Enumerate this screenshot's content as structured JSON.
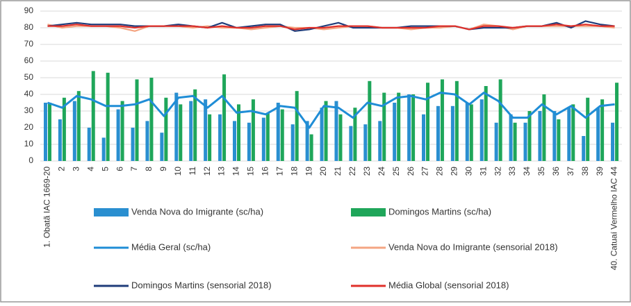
{
  "chart_data": {
    "type": "bar",
    "categories": [
      "1. Obatã IAC 1669-20",
      "2",
      "3",
      "4",
      "5",
      "6",
      "7",
      "8",
      "9",
      "10",
      "11",
      "12",
      "13",
      "14",
      "15",
      "16",
      "17",
      "18",
      "19",
      "20",
      "21",
      "22",
      "23",
      "24",
      "25",
      "26",
      "27",
      "28",
      "29",
      "30",
      "31",
      "32",
      "33",
      "34",
      "35",
      "36",
      "37",
      "38",
      "39",
      "40. Catuaí Vermelho IAC 44"
    ],
    "series": [
      {
        "name": "Venda Nova do Imigrante (sc/ha)",
        "type": "bar",
        "color": "#2a8fd0",
        "values": [
          35,
          25,
          36,
          20,
          14,
          31,
          20,
          24,
          17,
          41,
          36,
          37,
          28,
          24,
          23,
          26,
          35,
          22,
          24,
          32,
          36,
          21,
          22,
          24,
          35,
          40,
          28,
          33,
          33,
          35,
          37,
          23,
          28,
          23,
          30,
          30,
          32,
          15,
          32,
          23
        ]
      },
      {
        "name": "Domingos Martins (sc/ha)",
        "type": "bar",
        "color": "#1fa65a",
        "values": [
          35,
          38,
          42,
          54,
          53,
          36,
          49,
          50,
          38,
          34,
          43,
          28,
          52,
          34,
          37,
          29,
          31,
          42,
          16,
          36,
          28,
          32,
          48,
          41,
          41,
          40,
          47,
          49,
          48,
          34,
          45,
          49,
          23,
          30,
          40,
          25,
          34,
          38,
          37,
          47
        ]
      },
      {
        "name": "Média Geral (sc/ha)",
        "type": "line",
        "color": "#1f8dd6",
        "values": [
          35,
          32,
          39,
          37,
          33,
          33,
          34,
          37,
          27,
          38,
          39,
          32,
          39,
          29,
          30,
          28,
          33,
          32,
          20,
          33,
          32,
          26,
          35,
          33,
          38,
          39,
          37,
          41,
          40,
          34,
          41,
          36,
          26,
          26,
          34,
          28,
          33,
          26,
          33,
          34
        ]
      },
      {
        "name": "Venda Nova do Imigrante (sensorial 2018)",
        "type": "line",
        "color": "#f4a582",
        "values": [
          82,
          80,
          81,
          81,
          81,
          80,
          78,
          81,
          81,
          81,
          80,
          81,
          80,
          80,
          79,
          80,
          81,
          80,
          80,
          79,
          80,
          81,
          81,
          80,
          80,
          79,
          80,
          80,
          81,
          79,
          82,
          81,
          79,
          81,
          81,
          81,
          81,
          81,
          81,
          80
        ]
      },
      {
        "name": "Domingos Martins (sensorial 2018)",
        "type": "line",
        "color": "#1f3c7a",
        "values": [
          81,
          82,
          83,
          82,
          82,
          82,
          81,
          81,
          81,
          82,
          81,
          80,
          83,
          80,
          81,
          82,
          82,
          78,
          79,
          81,
          83,
          80,
          80,
          80,
          80,
          81,
          81,
          81,
          81,
          79,
          80,
          80,
          80,
          81,
          81,
          83,
          80,
          84,
          82,
          81
        ]
      },
      {
        "name": "Média Global (sensorial 2018)",
        "type": "line",
        "color": "#e0302a",
        "values": [
          81,
          81,
          82,
          81,
          81,
          81,
          80,
          81,
          81,
          81,
          81,
          80,
          81,
          80,
          80,
          81,
          81,
          79,
          80,
          80,
          81,
          81,
          81,
          80,
          80,
          80,
          80,
          81,
          81,
          79,
          81,
          81,
          80,
          81,
          81,
          82,
          81,
          82,
          81,
          81
        ]
      }
    ],
    "ylim": [
      0,
      90
    ],
    "yticks": [
      0,
      10,
      20,
      30,
      40,
      50,
      60,
      70,
      80,
      90
    ],
    "grid": true
  }
}
